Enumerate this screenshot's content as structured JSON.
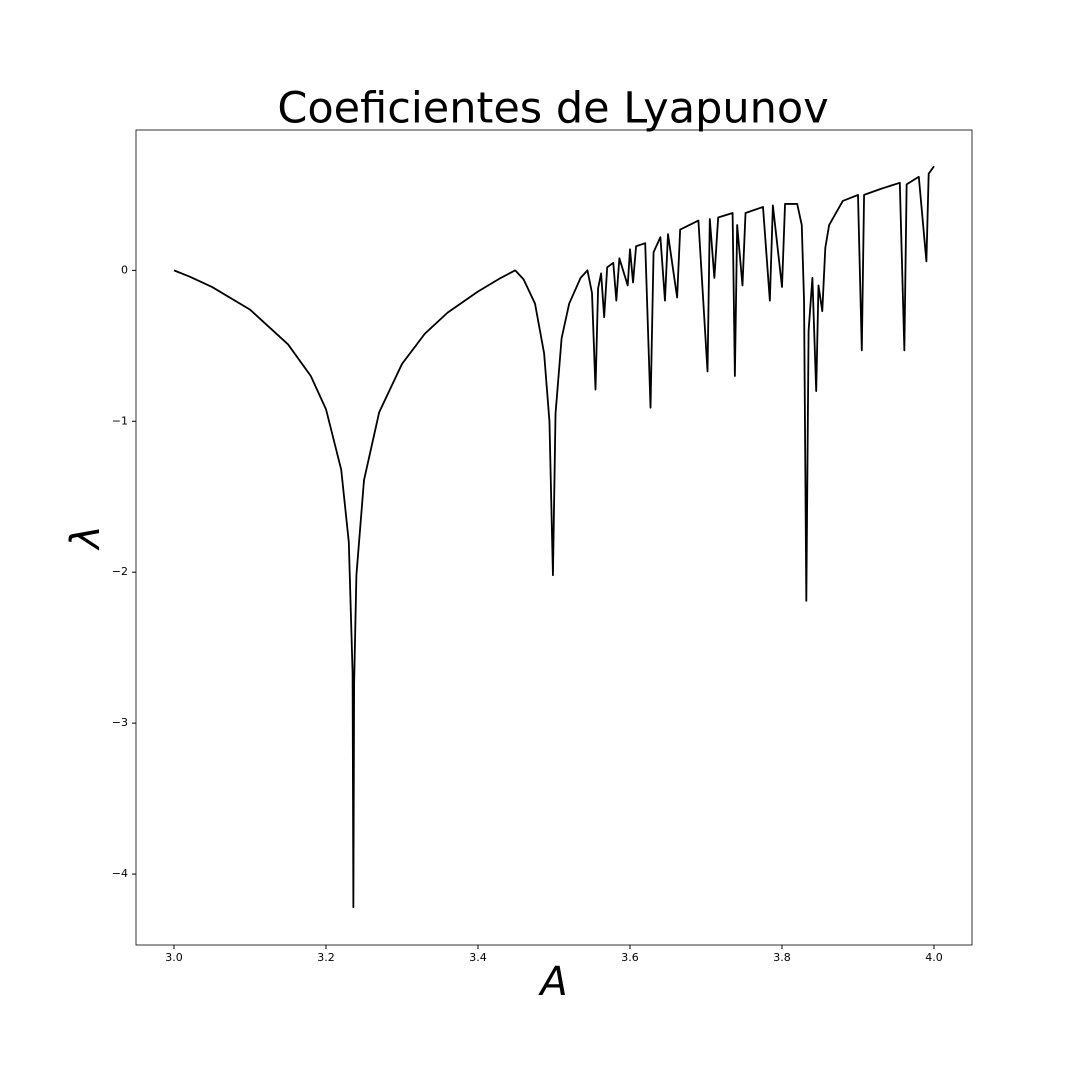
{
  "chart_data": {
    "type": "line",
    "title": "Coeficientes de Lyapunov",
    "x_label": "A",
    "y_label": "λ",
    "color": "#000000",
    "x": [
      3.0,
      3.02,
      3.05,
      3.1,
      3.15,
      3.18,
      3.2,
      3.22,
      3.23,
      3.235,
      3.236,
      3.237,
      3.24,
      3.25,
      3.27,
      3.3,
      3.33,
      3.36,
      3.4,
      3.43,
      3.449,
      3.46,
      3.475,
      3.487,
      3.494,
      3.4986,
      3.502,
      3.51,
      3.52,
      3.535,
      3.544,
      3.55,
      3.5546,
      3.558,
      3.562,
      3.566,
      3.57,
      3.578,
      3.582,
      3.586,
      3.597,
      3.6,
      3.604,
      3.608,
      3.62,
      3.627,
      3.631,
      3.64,
      3.646,
      3.65,
      3.662,
      3.666,
      3.69,
      3.702,
      3.705,
      3.711,
      3.716,
      3.735,
      3.738,
      3.741,
      3.748,
      3.752,
      3.775,
      3.784,
      3.788,
      3.8,
      3.804,
      3.82,
      3.826,
      3.829,
      3.832,
      3.835,
      3.84,
      3.845,
      3.848,
      3.853,
      3.857,
      3.862,
      3.88,
      3.9,
      3.905,
      3.908,
      3.93,
      3.955,
      3.961,
      3.964,
      3.98,
      3.99,
      3.993,
      4.0
    ],
    "values": [
      0,
      -0.04,
      -0.11,
      -0.26,
      -0.49,
      -0.7,
      -0.92,
      -1.32,
      -1.8,
      -2.67,
      -4.22,
      -2.74,
      -2.02,
      -1.39,
      -0.94,
      -0.62,
      -0.42,
      -0.28,
      -0.14,
      -0.05,
      0,
      -0.06,
      -0.22,
      -0.55,
      -1.0,
      -2.02,
      -0.95,
      -0.45,
      -0.22,
      -0.05,
      0,
      -0.15,
      -0.79,
      -0.12,
      -0.02,
      -0.31,
      0.02,
      0.05,
      -0.2,
      0.08,
      -0.1,
      0.14,
      -0.08,
      0.16,
      0.18,
      -0.91,
      0.12,
      0.22,
      -0.2,
      0.24,
      -0.18,
      0.27,
      0.33,
      -0.67,
      0.34,
      -0.05,
      0.35,
      0.38,
      -0.7,
      0.3,
      -0.1,
      0.38,
      0.42,
      -0.2,
      0.43,
      -0.11,
      0.44,
      0.44,
      0.3,
      -0.2,
      -2.19,
      -0.4,
      -0.05,
      -0.8,
      -0.1,
      -0.27,
      0.15,
      0.3,
      0.46,
      0.5,
      -0.53,
      0.5,
      0.54,
      0.58,
      -0.53,
      0.57,
      0.62,
      0.06,
      0.64,
      0.69
    ],
    "xlim": [
      2.95,
      4.05
    ],
    "ylim": [
      -4.47,
      0.93
    ],
    "xticks": [
      {
        "value": 3.0,
        "label": "3.0"
      },
      3.2,
      3.4,
      3.6,
      3.8,
      {
        "value": 4.0,
        "label": "4.0"
      }
    ],
    "yticks": [
      {
        "value": -4,
        "label": "−4"
      },
      {
        "value": -3,
        "label": "−3"
      },
      {
        "value": -2,
        "label": "−2"
      },
      {
        "value": -1,
        "label": "−1"
      },
      0
    ],
    "grid": false
  }
}
